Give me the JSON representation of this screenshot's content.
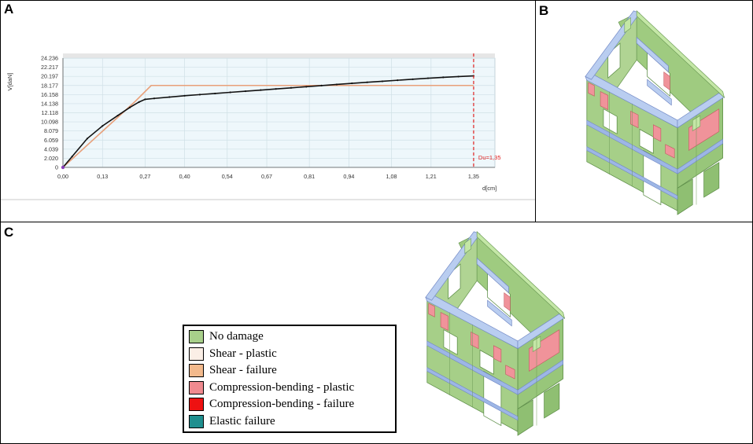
{
  "panels": {
    "a_label": "A",
    "b_label": "B",
    "c_label": "C"
  },
  "chart_data": {
    "type": "line",
    "ylabel": "V[daN]",
    "xlabel": "d[cm]",
    "x_ticks": [
      "0,00",
      "0,13",
      "0,27",
      "0,40",
      "0,54",
      "0,67",
      "0,81",
      "0,94",
      "1,08",
      "1,21",
      "1,35"
    ],
    "y_ticks": [
      "0",
      "2.020",
      "4.039",
      "6.059",
      "8.079",
      "10.098",
      "12.118",
      "14.138",
      "16.158",
      "18.177",
      "20.197",
      "22.217",
      "24.236"
    ],
    "xlim": [
      0,
      1.42
    ],
    "ylim": [
      0,
      24236
    ],
    "grid": true,
    "du_label": "Du=1,35",
    "du_value": 1.35,
    "colors": {
      "curve": "#111111",
      "bilinear": "#e8a07a",
      "du_line": "#e02020",
      "grid": "#cfe0e6",
      "plot_bg": "#eef7fb"
    },
    "series": [
      {
        "values_x": [
          0,
          0.03,
          0.08,
          0.13,
          0.18,
          0.22,
          0.25,
          0.27,
          0.3,
          0.35,
          0.4,
          0.45,
          0.5,
          0.55,
          0.6,
          0.65,
          0.7,
          0.75,
          0.8,
          0.85,
          0.9,
          0.95,
          1.0,
          1.05,
          1.1,
          1.15,
          1.2,
          1.25,
          1.3,
          1.35
        ],
        "values_y": [
          0,
          2400,
          6400,
          9200,
          11500,
          13300,
          14500,
          15100,
          15300,
          15600,
          15900,
          16150,
          16400,
          16650,
          16900,
          17150,
          17400,
          17650,
          17900,
          18150,
          18400,
          18650,
          18880,
          19100,
          19330,
          19560,
          19780,
          19980,
          20150,
          20300
        ]
      },
      {
        "values_x": [
          0,
          0.24,
          0.29,
          1.35
        ],
        "values_y": [
          0,
          14800,
          18177,
          18177
        ]
      }
    ]
  },
  "legend": {
    "items": [
      {
        "label": "No damage",
        "color": "#a8cf8a"
      },
      {
        "label": "Shear - plastic",
        "color": "#fbefe6"
      },
      {
        "label": "Shear - failure",
        "color": "#f2b98c"
      },
      {
        "label": "Compression-bending - plastic",
        "color": "#f08a8f"
      },
      {
        "label": "Compression-bending - failure",
        "color": "#ee1111"
      },
      {
        "label": "Elastic failure",
        "color": "#1f8f8f"
      }
    ]
  }
}
